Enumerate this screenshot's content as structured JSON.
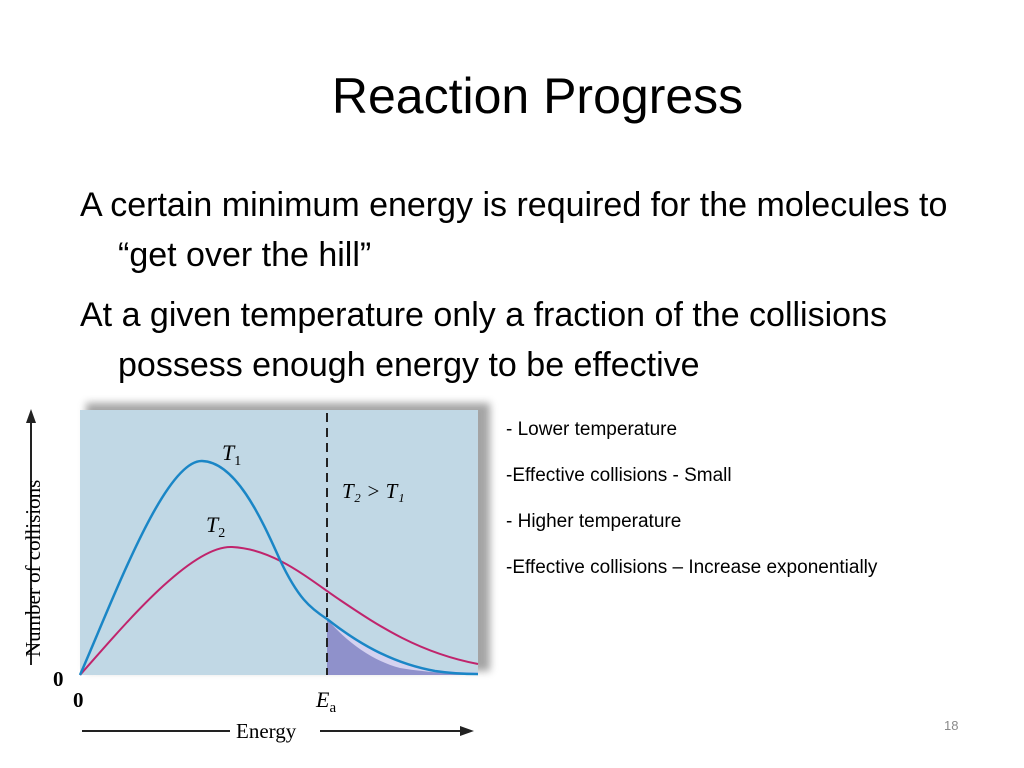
{
  "slide": {
    "title": "Reaction Progress",
    "bullets": [
      "A certain minimum energy is required for the molecules to “get over the hill”",
      "At a given temperature only a fraction of the collisions possess enough energy to be effective"
    ],
    "notes": [
      "- Lower temperature",
      "-Effective collisions - Small",
      "- Higher temperature",
      "-Effective collisions – Increase exponentially"
    ],
    "page_number": "18"
  },
  "figure": {
    "y_axis_label": "Number of collisions",
    "x_axis_label": "Energy",
    "origin_x": "0",
    "origin_y": "0",
    "ea_label": "E",
    "ea_sub": "a",
    "t1_label": "T",
    "t1_sub": "1",
    "t2_label": "T",
    "t2_sub": "2",
    "condition_label": "T₂ > T₁",
    "colors": {
      "panel_bg": "#c1d8e5",
      "t1_curve": "#1a86c6",
      "t2_curve": "#c0246c",
      "shaded_low": "#8f91cb",
      "shaded_high": "#d4d2f0"
    }
  }
}
